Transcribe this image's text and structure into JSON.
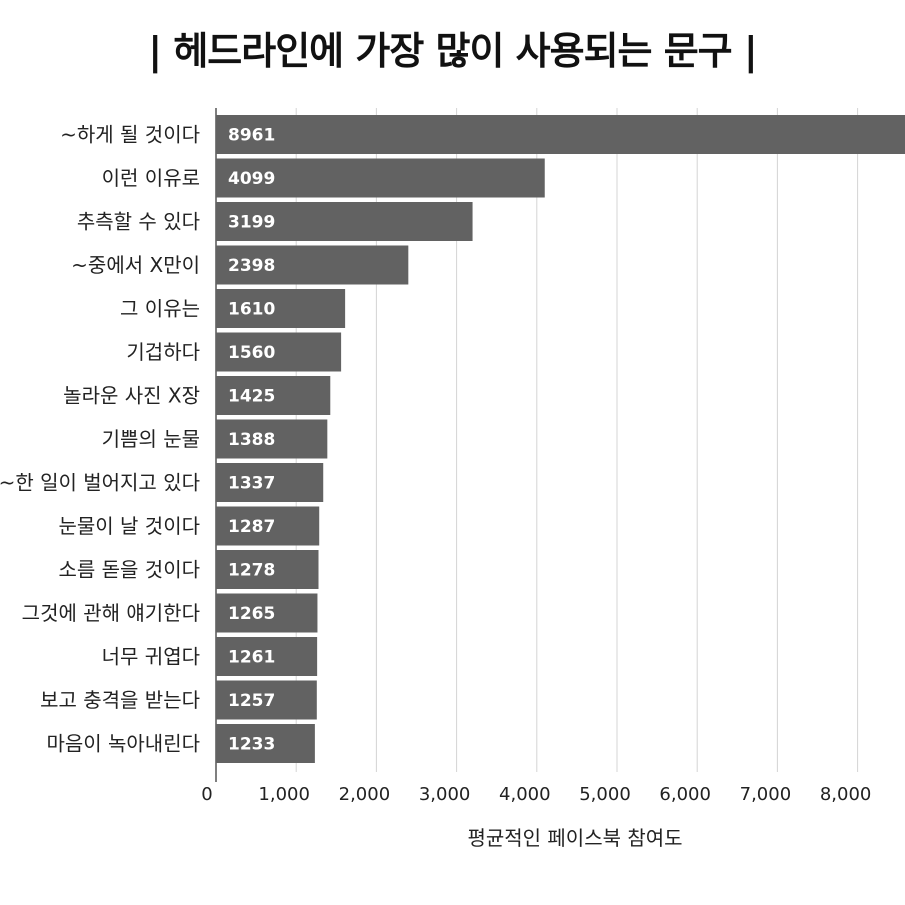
{
  "title": "| 헤드라인에 가장 많이 사용되는 문구 |",
  "chart_data": {
    "type": "bar",
    "orientation": "horizontal",
    "categories": [
      "~하게 될 것이다",
      "이런 이유로",
      "추측할 수 있다",
      "~중에서 X만이",
      "그 이유는",
      "기겁하다",
      "놀라운 사진 X장",
      "기쁨의 눈물",
      "~한 일이 벌어지고 있다",
      "눈물이 날 것이다",
      "소름 돋을 것이다",
      "그것에 관해 얘기한다",
      "너무 귀엽다",
      "보고 충격을 받는다",
      "마음이 녹아내린다"
    ],
    "values": [
      8961,
      4099,
      3199,
      2398,
      1610,
      1560,
      1425,
      1388,
      1337,
      1287,
      1278,
      1265,
      1261,
      1257,
      1233
    ],
    "xlabel": "평균적인 페이스북 참여도",
    "ylabel": "",
    "xlim": [
      0,
      9000
    ],
    "xticks": [
      0,
      1000,
      2000,
      3000,
      4000,
      5000,
      6000,
      7000,
      8000
    ],
    "xtick_labels": [
      "0",
      "1,000",
      "2,000",
      "3,000",
      "4,000",
      "5,000",
      "6,000",
      "7,000",
      "8,000"
    ],
    "grid": true,
    "bar_color": "#626262",
    "grid_color": "#d4d4d4",
    "value_label_color": "#ffffff"
  }
}
